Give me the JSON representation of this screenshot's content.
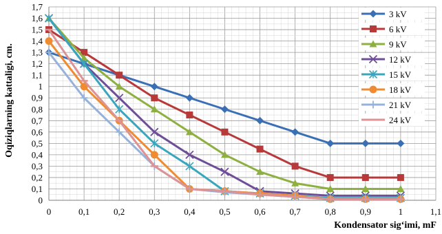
{
  "chart_data": {
    "type": "line",
    "xlabel": "Kondensator sig‘imi, mF",
    "ylabel": "Oqiziqlarning kattaligi, cm.",
    "xlim": [
      0,
      1.1
    ],
    "ylim": [
      0,
      1.7
    ],
    "x_ticks": [
      "0",
      "0,1",
      "0,2",
      "0,3",
      "0,4",
      "0,5",
      "0,6",
      "0,7",
      "0,8",
      "0,9",
      "1",
      "1,1"
    ],
    "y_ticks": [
      "0",
      "0,1",
      "0,2",
      "0,3",
      "0,4",
      "0,5",
      "0,6",
      "0,7",
      "0,8",
      "0,9",
      "1",
      "1,1",
      "1,2",
      "1,3",
      "1,4",
      "1,5",
      "1,6",
      "1,7"
    ],
    "grid": true,
    "legend_position": "right",
    "x": [
      0,
      0.1,
      0.2,
      0.3,
      0.4,
      0.5,
      0.6,
      0.7,
      0.8,
      0.9,
      1.0
    ],
    "series": [
      {
        "name": "3 kV",
        "color": "#3a6fb5",
        "marker": "diamond",
        "values": [
          1.3,
          1.2,
          1.1,
          1.0,
          0.9,
          0.8,
          0.7,
          0.6,
          0.5,
          0.5,
          0.5
        ]
      },
      {
        "name": "6 kV",
        "color": "#b8393a",
        "marker": "square",
        "values": [
          1.5,
          1.3,
          1.1,
          0.9,
          0.75,
          0.6,
          0.45,
          0.3,
          0.2,
          0.2,
          0.2
        ]
      },
      {
        "name": "9 kV",
        "color": "#8db041",
        "marker": "triangle",
        "values": [
          1.6,
          1.25,
          1.0,
          0.8,
          0.6,
          0.4,
          0.25,
          0.15,
          0.1,
          0.1,
          0.1
        ]
      },
      {
        "name": "12 kV",
        "color": "#6f4e98",
        "marker": "x",
        "values": [
          1.6,
          1.2,
          0.9,
          0.6,
          0.4,
          0.25,
          0.08,
          0.06,
          0.04,
          0.04,
          0.04
        ]
      },
      {
        "name": "15 kV",
        "color": "#39a6bd",
        "marker": "star",
        "values": [
          1.6,
          1.2,
          0.8,
          0.5,
          0.3,
          0.08,
          0.06,
          0.04,
          0.02,
          0.02,
          0.02
        ]
      },
      {
        "name": "18 kV",
        "color": "#ef8c32",
        "marker": "circle",
        "values": [
          1.4,
          1.0,
          0.7,
          0.4,
          0.1,
          0.08,
          0.06,
          0.04,
          0.01,
          0.01,
          0.01
        ]
      },
      {
        "name": "21 kV",
        "color": "#96b1dc",
        "marker": "plus",
        "values": [
          1.3,
          0.9,
          0.6,
          0.3,
          0.1,
          0.07,
          0.05,
          0.03,
          0.01,
          0.01,
          0.01
        ]
      },
      {
        "name": "24 kV",
        "color": "#dd9294",
        "marker": "dash",
        "values": [
          1.5,
          1.05,
          0.7,
          0.3,
          0.1,
          0.08,
          0.05,
          0.03,
          0.01,
          0.01,
          0.01
        ]
      }
    ]
  }
}
